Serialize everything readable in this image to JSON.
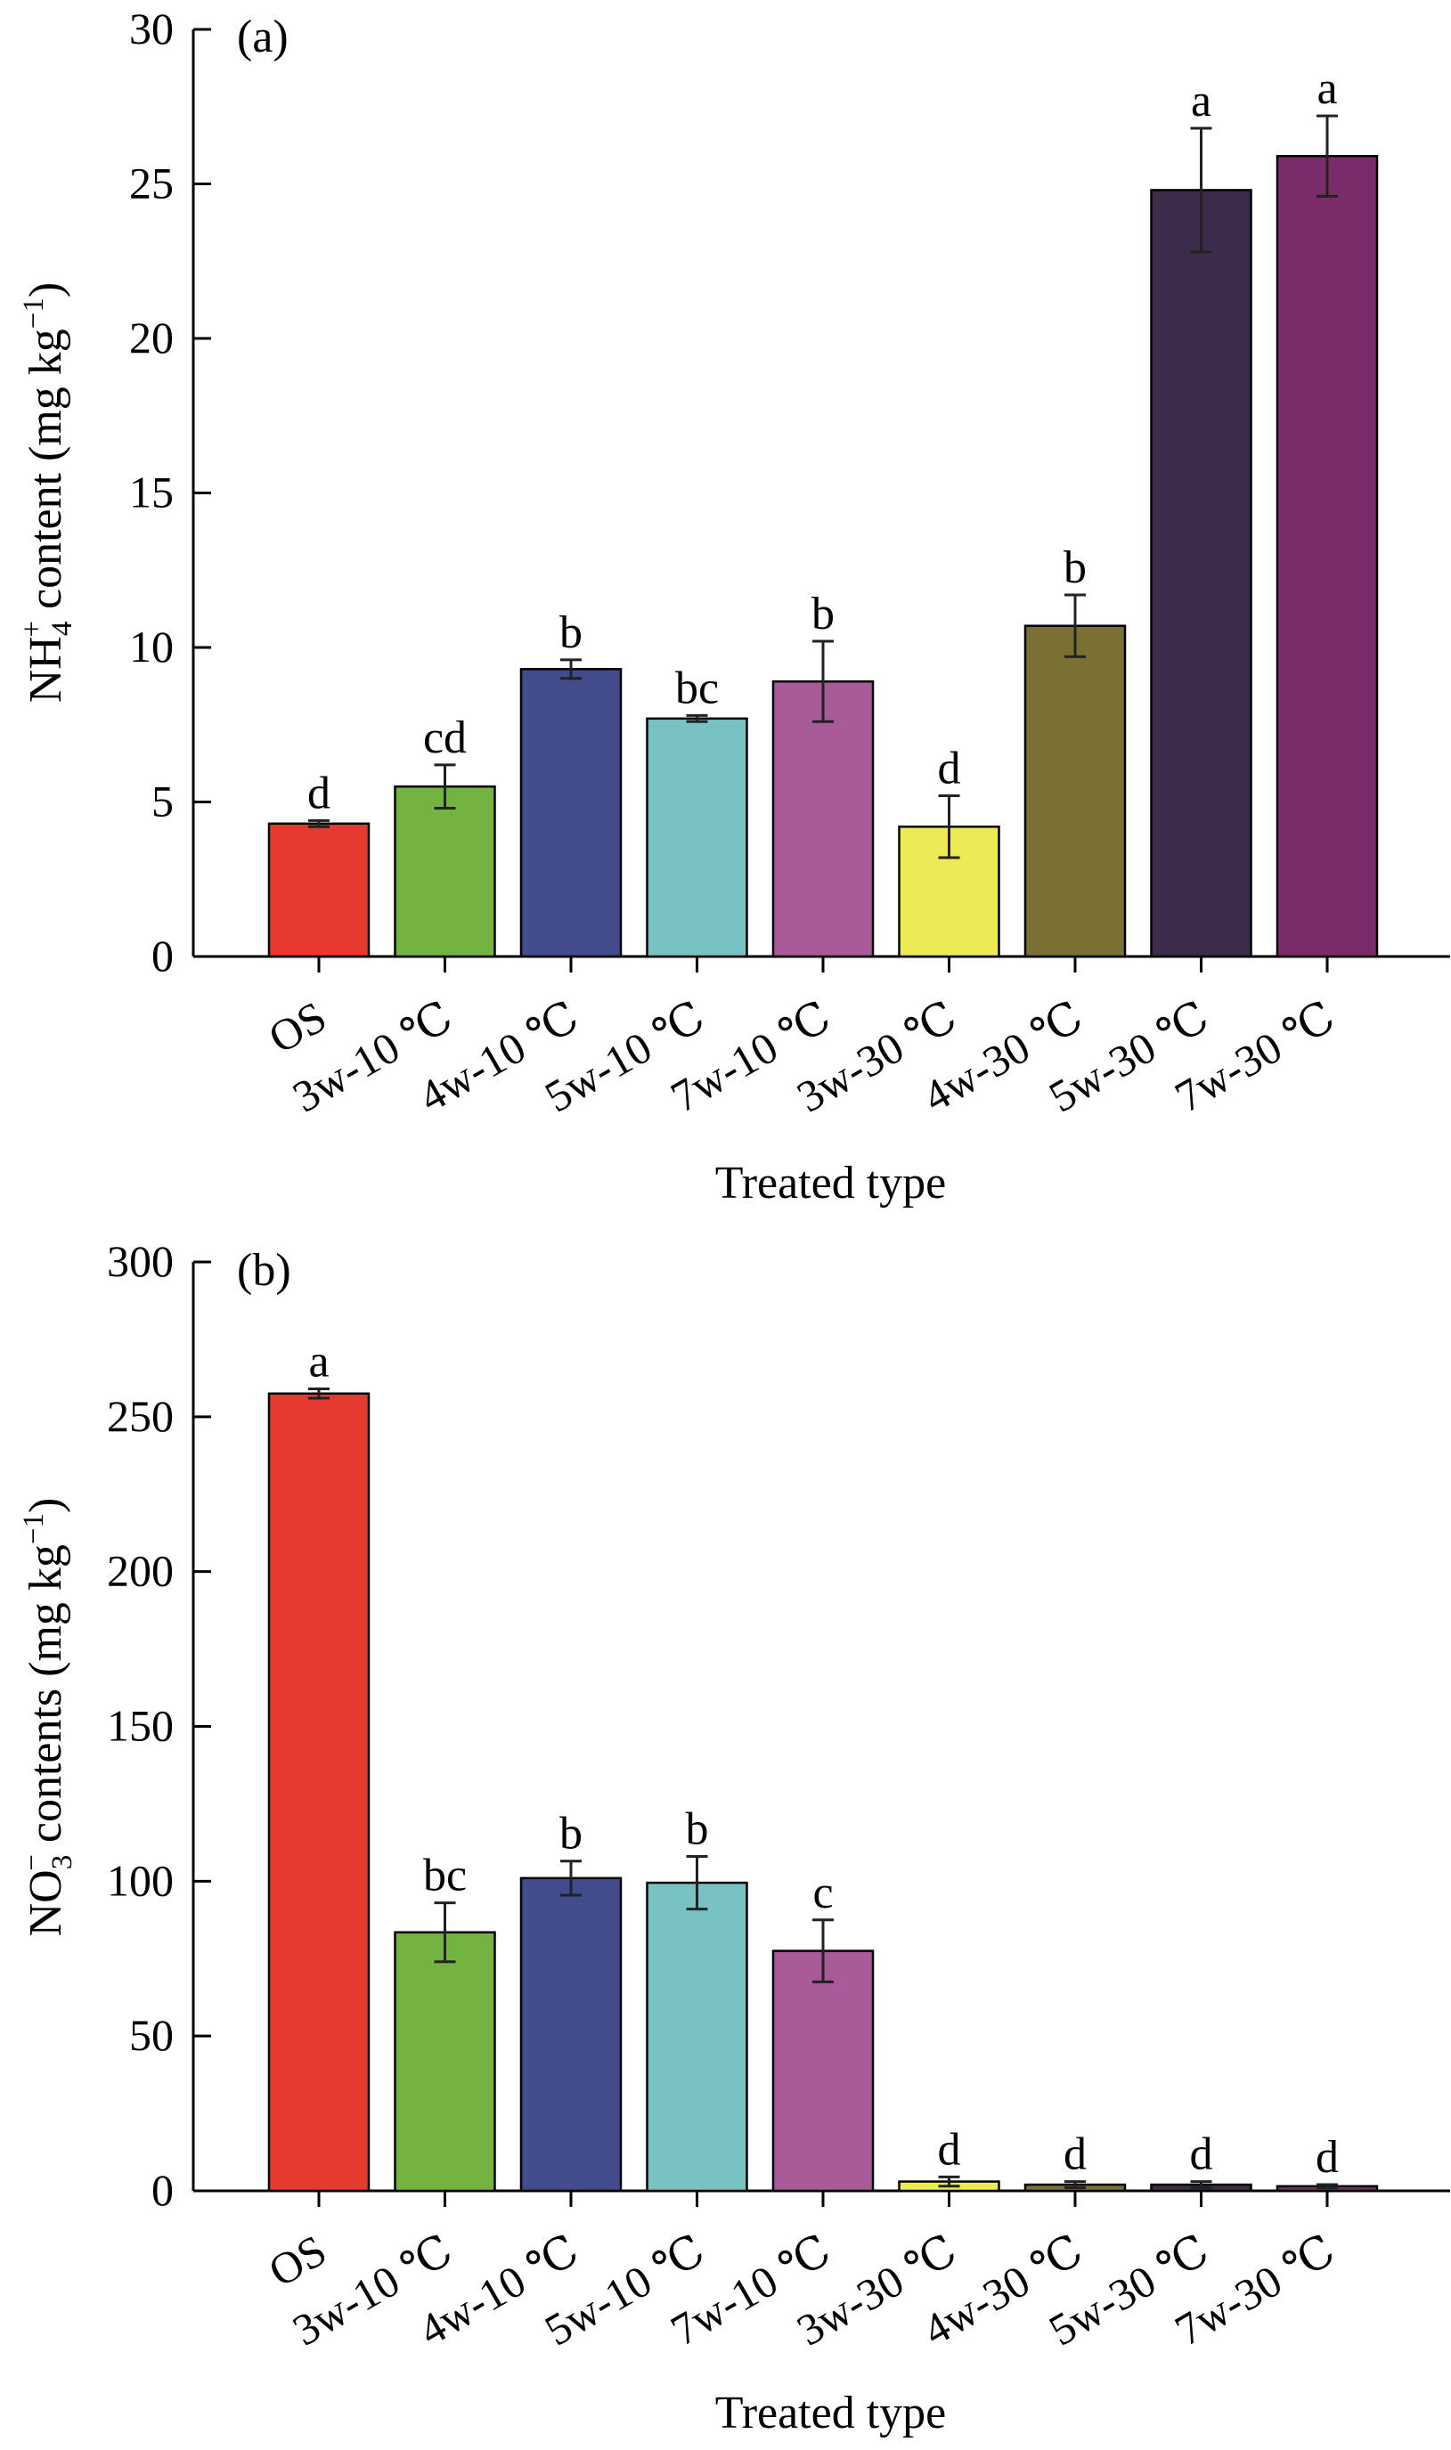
{
  "chart_data": [
    {
      "type": "bar",
      "panel_label": "(a)",
      "categories": [
        "OS",
        "3w-10 ℃",
        "4w-10 ℃",
        "5w-10 ℃",
        "7w-10 ℃",
        "3w-30 ℃",
        "4w-30 ℃",
        "5w-30 ℃",
        "7w-30 ℃"
      ],
      "values": [
        4.3,
        5.5,
        9.3,
        7.7,
        8.9,
        4.2,
        10.7,
        24.8,
        25.9
      ],
      "errors": [
        0.1,
        0.7,
        0.3,
        0.1,
        1.3,
        1.0,
        1.0,
        2.0,
        1.3
      ],
      "significance": [
        "d",
        "cd",
        "b",
        "bc",
        "b",
        "d",
        "b",
        "a",
        "a"
      ],
      "colors": [
        "#e63a30",
        "#72b43f",
        "#424b8b",
        "#79c2c2",
        "#a75a97",
        "#ecea55",
        "#7b7034",
        "#3c2c4a",
        "#7a2b69"
      ],
      "ylabel": {
        "main": "NH",
        "sub": "4",
        "sup": "+",
        "rest": " content (mg kg",
        "unit_sup": "−1",
        "close": ")"
      },
      "xlabel": "Treated type",
      "ylim": [
        0,
        30
      ],
      "yticks": [
        0,
        5,
        10,
        15,
        20,
        25,
        30
      ],
      "grid": false
    },
    {
      "type": "bar",
      "panel_label": "(b)",
      "categories": [
        "OS",
        "3w-10 ℃",
        "4w-10 ℃",
        "5w-10 ℃",
        "7w-10 ℃",
        "3w-30 ℃",
        "4w-30 ℃",
        "5w-30 ℃",
        "7w-30 ℃"
      ],
      "values": [
        257.5,
        83.5,
        101,
        99.5,
        77.5,
        3,
        2,
        2,
        1.5
      ],
      "errors": [
        1.5,
        9.5,
        5.5,
        8.5,
        10,
        1.5,
        1,
        1,
        0.5
      ],
      "significance": [
        "a",
        "bc",
        "b",
        "b",
        "c",
        "d",
        "d",
        "d",
        "d"
      ],
      "colors": [
        "#e63a30",
        "#72b43f",
        "#424b8b",
        "#79c2c2",
        "#a75a97",
        "#ecea55",
        "#7b7034",
        "#3c2c4a",
        "#7a2b69"
      ],
      "ylabel": {
        "main": "NO",
        "sub": "3",
        "sup": "−",
        "rest": " contents (mg kg",
        "unit_sup": "−1",
        "close": ")"
      },
      "xlabel": "Treated type",
      "ylim": [
        0,
        300
      ],
      "yticks": [
        0,
        50,
        100,
        150,
        200,
        250,
        300
      ],
      "grid": false
    }
  ]
}
